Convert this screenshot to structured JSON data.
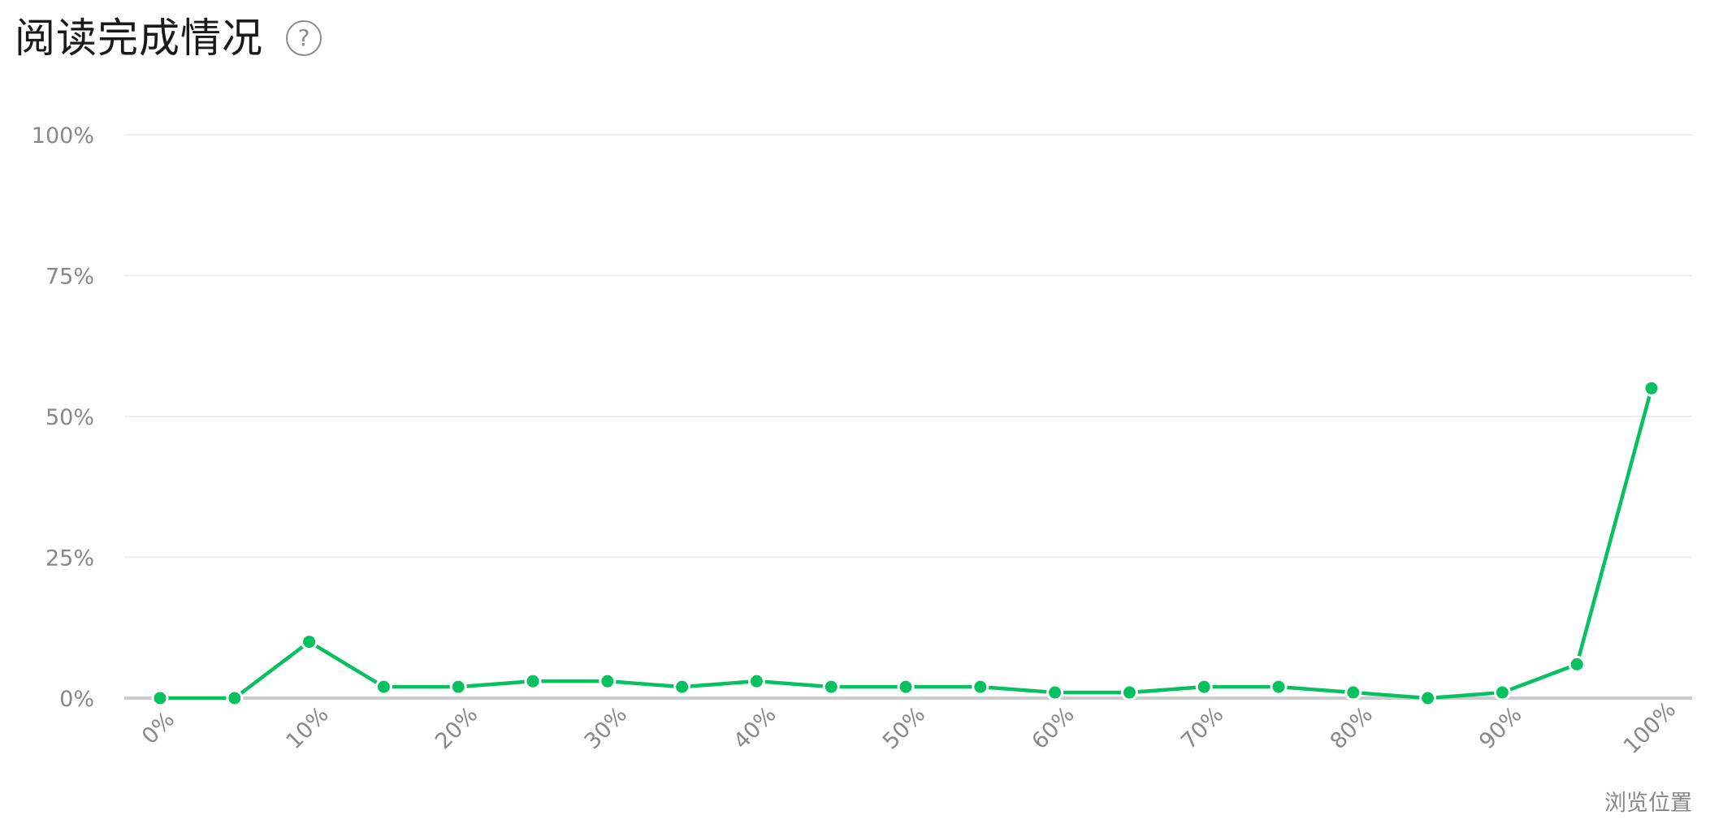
{
  "header": {
    "title": "阅读完成情况",
    "help_icon_glyph": "?"
  },
  "chart_data": {
    "type": "line",
    "x": [
      "0%",
      "5%",
      "10%",
      "15%",
      "20%",
      "25%",
      "30%",
      "35%",
      "40%",
      "45%",
      "50%",
      "55%",
      "60%",
      "65%",
      "70%",
      "75%",
      "80%",
      "85%",
      "90%",
      "95%",
      "100%"
    ],
    "x_tick_labels": [
      "0%",
      "10%",
      "20%",
      "30%",
      "40%",
      "50%",
      "60%",
      "70%",
      "80%",
      "90%",
      "100%"
    ],
    "series": [
      {
        "values": [
          0,
          0,
          10,
          2,
          2,
          3,
          3,
          2,
          3,
          2,
          2,
          2,
          1,
          1,
          2,
          2,
          1,
          0,
          1,
          6,
          55
        ],
        "color": "#07c160"
      }
    ],
    "y_ticks": [
      0,
      25,
      50,
      75,
      100
    ],
    "y_tick_labels": [
      "0%",
      "25%",
      "50%",
      "75%",
      "100%"
    ],
    "ylim": [
      0,
      100
    ],
    "xlabel": "浏览位置",
    "ylabel": "",
    "grid": true,
    "legend": "none",
    "colors": {
      "line": "#07c160",
      "grid": "#eeeeee",
      "baseline": "#cccccc",
      "axis_text": "#888888"
    }
  }
}
